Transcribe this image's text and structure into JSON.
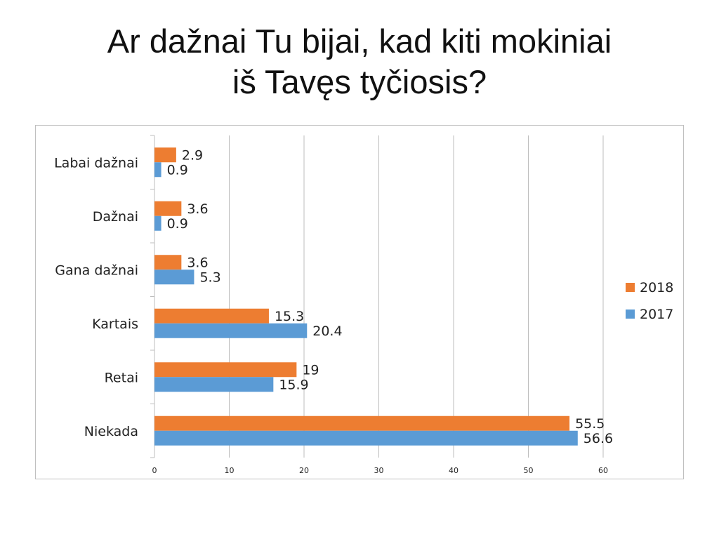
{
  "title": {
    "line1": "Ar dažnai Tu bijai, kad kiti mokiniai",
    "line2": "iš Tavęs tyčiosis?"
  },
  "chart_data": {
    "type": "bar",
    "orientation": "horizontal",
    "categories": [
      "Labai dažnai",
      "Dažnai",
      "Gana dažnai",
      "Kartais",
      "Retai",
      "Niekada"
    ],
    "series": [
      {
        "name": "2018",
        "color": "#ed7d31",
        "values": [
          2.9,
          3.6,
          3.6,
          15.3,
          19,
          55.5
        ]
      },
      {
        "name": "2017",
        "color": "#5b9bd5",
        "values": [
          0.9,
          0.9,
          5.3,
          20.4,
          15.9,
          56.6
        ]
      }
    ],
    "xlim": [
      0,
      60
    ],
    "xticks": [
      0,
      10,
      20,
      30,
      40,
      50,
      60
    ],
    "grid": true,
    "legend_position": "right"
  }
}
